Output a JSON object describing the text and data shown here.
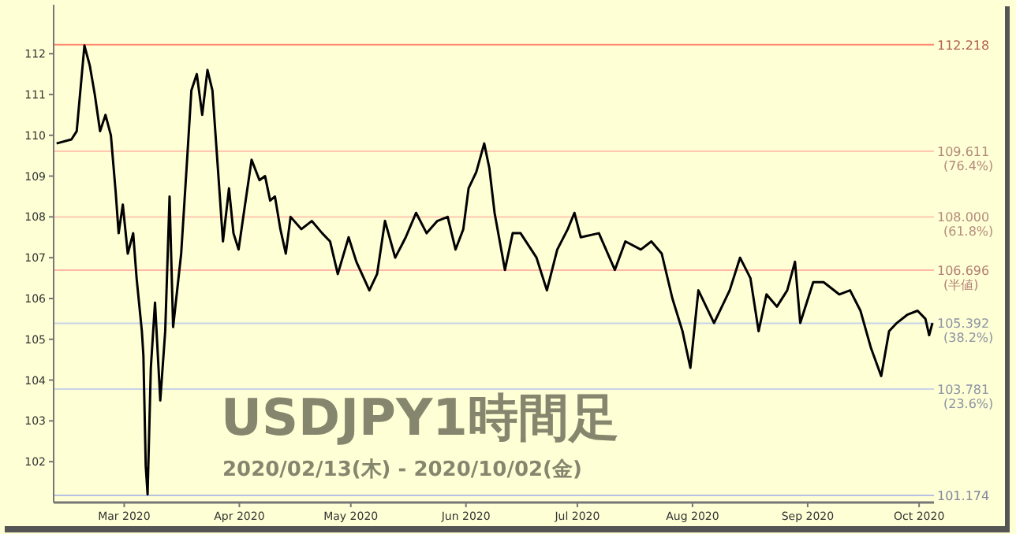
{
  "chart_data": {
    "type": "line",
    "title": "USDJPY1時間足",
    "subtitle": "2020/02/13(木) - 2020/10/02(金)",
    "xlim": [
      "2020-02-11",
      "2020-10-05"
    ],
    "xticks": [
      {
        "value": "2020-03-01",
        "label": "Mar 2020"
      },
      {
        "value": "2020-04-01",
        "label": "Apr 2020"
      },
      {
        "value": "2020-05-01",
        "label": "May 2020"
      },
      {
        "value": "2020-06-01",
        "label": "Jun 2020"
      },
      {
        "value": "2020-07-01",
        "label": "Jul 2020"
      },
      {
        "value": "2020-08-01",
        "label": "Aug 2020"
      },
      {
        "value": "2020-09-01",
        "label": "Sep 2020"
      },
      {
        "value": "2020-10-01",
        "label": "Oct 2020"
      }
    ],
    "ylim": [
      101.0,
      113.2
    ],
    "yticks": [
      102,
      103,
      104,
      105,
      106,
      107,
      108,
      109,
      110,
      111,
      112
    ],
    "series": [
      {
        "color": "#000000",
        "x": [
          "2020-02-11T19:00",
          "2020-02-15T19:00",
          "2020-02-17T05:00",
          "2020-02-19T07:00",
          "2020-02-20T18:00",
          "2020-02-22T02:00",
          "2020-02-23T12:00",
          "2020-02-24T23:00",
          "2020-02-26T10:00",
          "2020-02-27T17:00",
          "2020-02-28T12:00",
          "2020-02-29T15:00",
          "2020-03-01T23:00",
          "2020-03-03T10:00",
          "2020-03-04T08:00",
          "2020-03-05T18:00",
          "2020-03-06T04:00",
          "2020-03-06T19:00",
          "2020-03-07T07:00",
          "2020-03-08T04:00",
          "2020-03-09T07:00",
          "2020-03-10T17:00",
          "2020-03-12T01:00",
          "2020-03-13T05:00",
          "2020-03-14T04:00",
          "2020-03-16T08:00",
          "2020-03-17T19:00",
          "2020-03-19T02:00",
          "2020-03-20T13:00",
          "2020-03-22T00:00",
          "2020-03-23T10:00",
          "2020-03-24T18:00",
          "2020-03-26T05:00",
          "2020-03-27T14:00",
          "2020-03-29T05:00",
          "2020-03-30T10:00",
          "2020-03-31T19:00",
          "2020-04-02T05:00",
          "2020-04-04T07:00",
          "2020-04-06T10:00",
          "2020-04-07T22:00",
          "2020-04-09T07:00",
          "2020-04-10T14:00",
          "2020-04-12T01:00",
          "2020-04-13T12:00",
          "2020-04-14T19:00",
          "2020-04-17T17:00",
          "2020-04-20T12:00",
          "2020-04-23T07:00",
          "2020-04-25T10:00",
          "2020-04-27T12:00",
          "2020-04-30T10:00",
          "2020-05-02T12:00",
          "2020-05-06T00:00",
          "2020-05-08T02:00",
          "2020-05-10T05:00",
          "2020-05-12T23:00",
          "2020-05-15T19:00",
          "2020-05-18T14:00",
          "2020-05-21T10:00",
          "2020-05-24T07:00",
          "2020-05-27T02:00",
          "2020-05-29T05:00",
          "2020-05-31T07:00",
          "2020-06-01T17:00",
          "2020-06-03T19:00",
          "2020-06-05T22:00",
          "2020-06-07T07:00",
          "2020-06-08T17:00",
          "2020-06-11T12:00",
          "2020-06-13T14:00",
          "2020-06-15T17:00",
          "2020-06-20T00:00",
          "2020-06-22T19:00",
          "2020-06-25T14:00",
          "2020-06-28T10:00",
          "2020-06-30T05:00",
          "2020-07-01T22:00",
          "2020-07-06T19:00",
          "2020-07-11T02:00",
          "2020-07-13T22:00",
          "2020-07-18T02:00",
          "2020-07-20T22:00",
          "2020-07-23T17:00",
          "2020-07-26T14:00",
          "2020-07-29T07:00",
          "2020-07-31T10:00",
          "2020-08-02T14:00",
          "2020-08-06T19:00",
          "2020-08-11T00:00",
          "2020-08-13T19:00",
          "2020-08-16T14:00",
          "2020-08-18T19:00",
          "2020-08-20T22:00",
          "2020-08-23T17:00",
          "2020-08-26T12:00",
          "2020-08-28T14:00",
          "2020-08-30T00:00",
          "2020-09-02T12:00",
          "2020-09-05T07:00",
          "2020-09-09T12:00",
          "2020-09-12T10:00",
          "2020-09-15T05:00",
          "2020-09-18T00:00",
          "2020-09-20T19:00",
          "2020-09-22T22:00",
          "2020-09-25T00:00",
          "2020-09-27T19:00",
          "2020-09-30T14:00",
          "2020-10-02T17:00",
          "2020-10-03T17:00",
          "2020-10-04T14:00"
        ],
        "values": [
          109.8,
          109.9,
          110.1,
          112.2,
          111.7,
          111.0,
          110.1,
          110.5,
          110.0,
          108.6,
          107.6,
          108.3,
          107.1,
          107.6,
          106.5,
          105.2,
          104.6,
          101.9,
          101.2,
          104.3,
          105.9,
          103.5,
          105.2,
          108.5,
          105.3,
          107.1,
          109.2,
          111.1,
          111.5,
          110.5,
          111.6,
          111.1,
          109.2,
          107.4,
          108.7,
          107.6,
          107.2,
          108.1,
          109.4,
          108.9,
          109.0,
          108.4,
          108.5,
          107.7,
          107.1,
          108.0,
          107.7,
          107.9,
          107.6,
          107.4,
          106.6,
          107.5,
          106.9,
          106.2,
          106.6,
          107.9,
          107.0,
          107.5,
          108.1,
          107.6,
          107.9,
          108.0,
          107.2,
          107.7,
          108.7,
          109.1,
          109.8,
          109.2,
          108.1,
          106.7,
          107.6,
          107.6,
          107.0,
          106.2,
          107.2,
          107.7,
          108.1,
          107.5,
          107.6,
          106.7,
          107.4,
          107.2,
          107.4,
          107.1,
          106.0,
          105.2,
          104.3,
          106.2,
          105.4,
          106.2,
          107.0,
          106.5,
          105.2,
          106.1,
          105.8,
          106.2,
          106.9,
          105.4,
          106.4,
          106.4,
          106.1,
          106.2,
          105.7,
          104.8,
          104.1,
          105.2,
          105.4,
          105.6,
          105.7,
          105.5,
          105.1,
          105.4
        ]
      }
    ],
    "ref_lines": [
      {
        "axis": "y",
        "value": 112.218,
        "label": "112.218",
        "color": "#ff8a70"
      },
      {
        "axis": "y",
        "value": 109.611,
        "label": "109.611 (76.4%)",
        "color": "#ffc8b0"
      },
      {
        "axis": "y",
        "value": 108.0,
        "label": "108.000 (61.8%)",
        "color": "#ffc8b0"
      },
      {
        "axis": "y",
        "value": 106.696,
        "label": "106.696 (半値)",
        "color": "#ffb8a8"
      },
      {
        "axis": "y",
        "value": 105.392,
        "label": "105.392 (38.2%)",
        "color": "#c8d4e8"
      },
      {
        "axis": "y",
        "value": 103.781,
        "label": "103.781 (23.6%)",
        "color": "#c8d4e8"
      },
      {
        "axis": "y",
        "value": 101.174,
        "label": "101.174",
        "color": "#b8c0e0"
      }
    ]
  }
}
